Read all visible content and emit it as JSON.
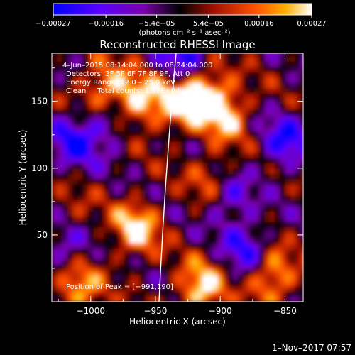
{
  "chart_data": {
    "type": "heatmap",
    "title": "Reconstructed RHESSI Image",
    "xlabel": "Heliocentric X (arcsec)",
    "ylabel": "Heliocentric Y (arcsec)",
    "xlim": [
      -1030,
      -836
    ],
    "ylim": [
      0,
      186
    ],
    "xticks": [
      -1000,
      -950,
      -900,
      -850
    ],
    "xtick_labels": [
      "−1000",
      "−950",
      "−900",
      "−850"
    ],
    "yticks": [
      50,
      100,
      150
    ],
    "ytick_labels": [
      "50",
      "100",
      "150"
    ],
    "colorbar": {
      "range": [
        -0.00027,
        0.00027
      ],
      "ticks": [
        -0.00027,
        -0.00016,
        -5.4e-05,
        5.4e-05,
        0.00016,
        0.00027
      ],
      "tick_labels": [
        "−0.00027",
        "−0.00016",
        "−5.4e−05",
        "5.4e−05",
        "0.00016",
        "0.00027"
      ],
      "unit_label": "(photons cm⁻² s⁻¹ asec⁻²)"
    },
    "annotations": {
      "time_range": "4–Jun–2015 08:14:04.000 to 08:24:04.000",
      "detectors": "Detectors: 3F 5F 6F 7F 8F 9F, Att 0",
      "energy_range": "Energy Range: 12.0 – 25.0 keV",
      "clean_counts": "Clean     Total counts: 1.57E+04",
      "peak_position": "Position of Peak = [−991,190]"
    },
    "bright_regions": [
      {
        "x": -990,
        "y": 160,
        "level": 0.8
      },
      {
        "x": -965,
        "y": 150,
        "level": 0.95
      },
      {
        "x": -935,
        "y": 150,
        "level": 0.85
      },
      {
        "x": -912,
        "y": 155,
        "level": 1.0
      },
      {
        "x": -895,
        "y": 140,
        "level": 0.8
      },
      {
        "x": -965,
        "y": 55,
        "level": 0.95
      },
      {
        "x": -915,
        "y": 10,
        "level": 1.0
      },
      {
        "x": -905,
        "y": 90,
        "level": 0.7
      },
      {
        "x": -860,
        "y": 20,
        "level": 0.9
      },
      {
        "x": -1010,
        "y": 10,
        "level": 0.85
      },
      {
        "x": -1015,
        "y": 60,
        "level": 0.5
      }
    ],
    "negative_regions": [
      {
        "x": -1013,
        "y": 120,
        "level": -0.8
      },
      {
        "x": -1018,
        "y": 45,
        "level": -0.75
      },
      {
        "x": -985,
        "y": 135,
        "level": -0.6
      },
      {
        "x": -930,
        "y": 185,
        "level": -0.85
      },
      {
        "x": -895,
        "y": 80,
        "level": -0.8
      },
      {
        "x": -880,
        "y": 40,
        "level": -0.75
      },
      {
        "x": -850,
        "y": 120,
        "level": -0.8
      }
    ]
  },
  "footer": {
    "date": "1–Nov–2017 07:57"
  }
}
